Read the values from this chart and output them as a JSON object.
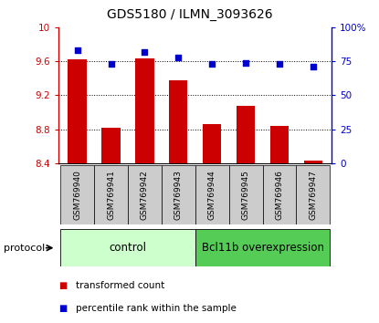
{
  "title": "GDS5180 / ILMN_3093626",
  "samples": [
    "GSM769940",
    "GSM769941",
    "GSM769942",
    "GSM769943",
    "GSM769944",
    "GSM769945",
    "GSM769946",
    "GSM769947"
  ],
  "bar_values": [
    9.62,
    8.82,
    9.63,
    9.38,
    8.86,
    9.08,
    8.84,
    8.43
  ],
  "dot_values": [
    83,
    73,
    82,
    78,
    73,
    74,
    73,
    71
  ],
  "bar_color": "#cc0000",
  "dot_color": "#0000cc",
  "ylim_left": [
    8.4,
    10.0
  ],
  "ylim_right": [
    0,
    100
  ],
  "yticks_left": [
    8.4,
    8.8,
    9.2,
    9.6,
    10.0
  ],
  "ytick_labels_left": [
    "8.4",
    "8.8",
    "9.2",
    "9.6",
    "10"
  ],
  "yticks_right": [
    0,
    25,
    50,
    75,
    100
  ],
  "ytick_labels_right": [
    "0",
    "25",
    "50",
    "75",
    "100%"
  ],
  "grid_values": [
    8.8,
    9.2,
    9.6
  ],
  "control_label": "control",
  "overexp_label": "Bcl11b overexpression",
  "protocol_label": "protocol",
  "control_color": "#ccffcc",
  "overexp_color": "#55cc55",
  "tick_bg_color": "#cccccc",
  "legend_bar_label": "transformed count",
  "legend_dot_label": "percentile rank within the sample",
  "bar_color_left": "#cc0000",
  "dot_color_right": "#0000cc",
  "n_control": 4,
  "n_overexp": 4
}
